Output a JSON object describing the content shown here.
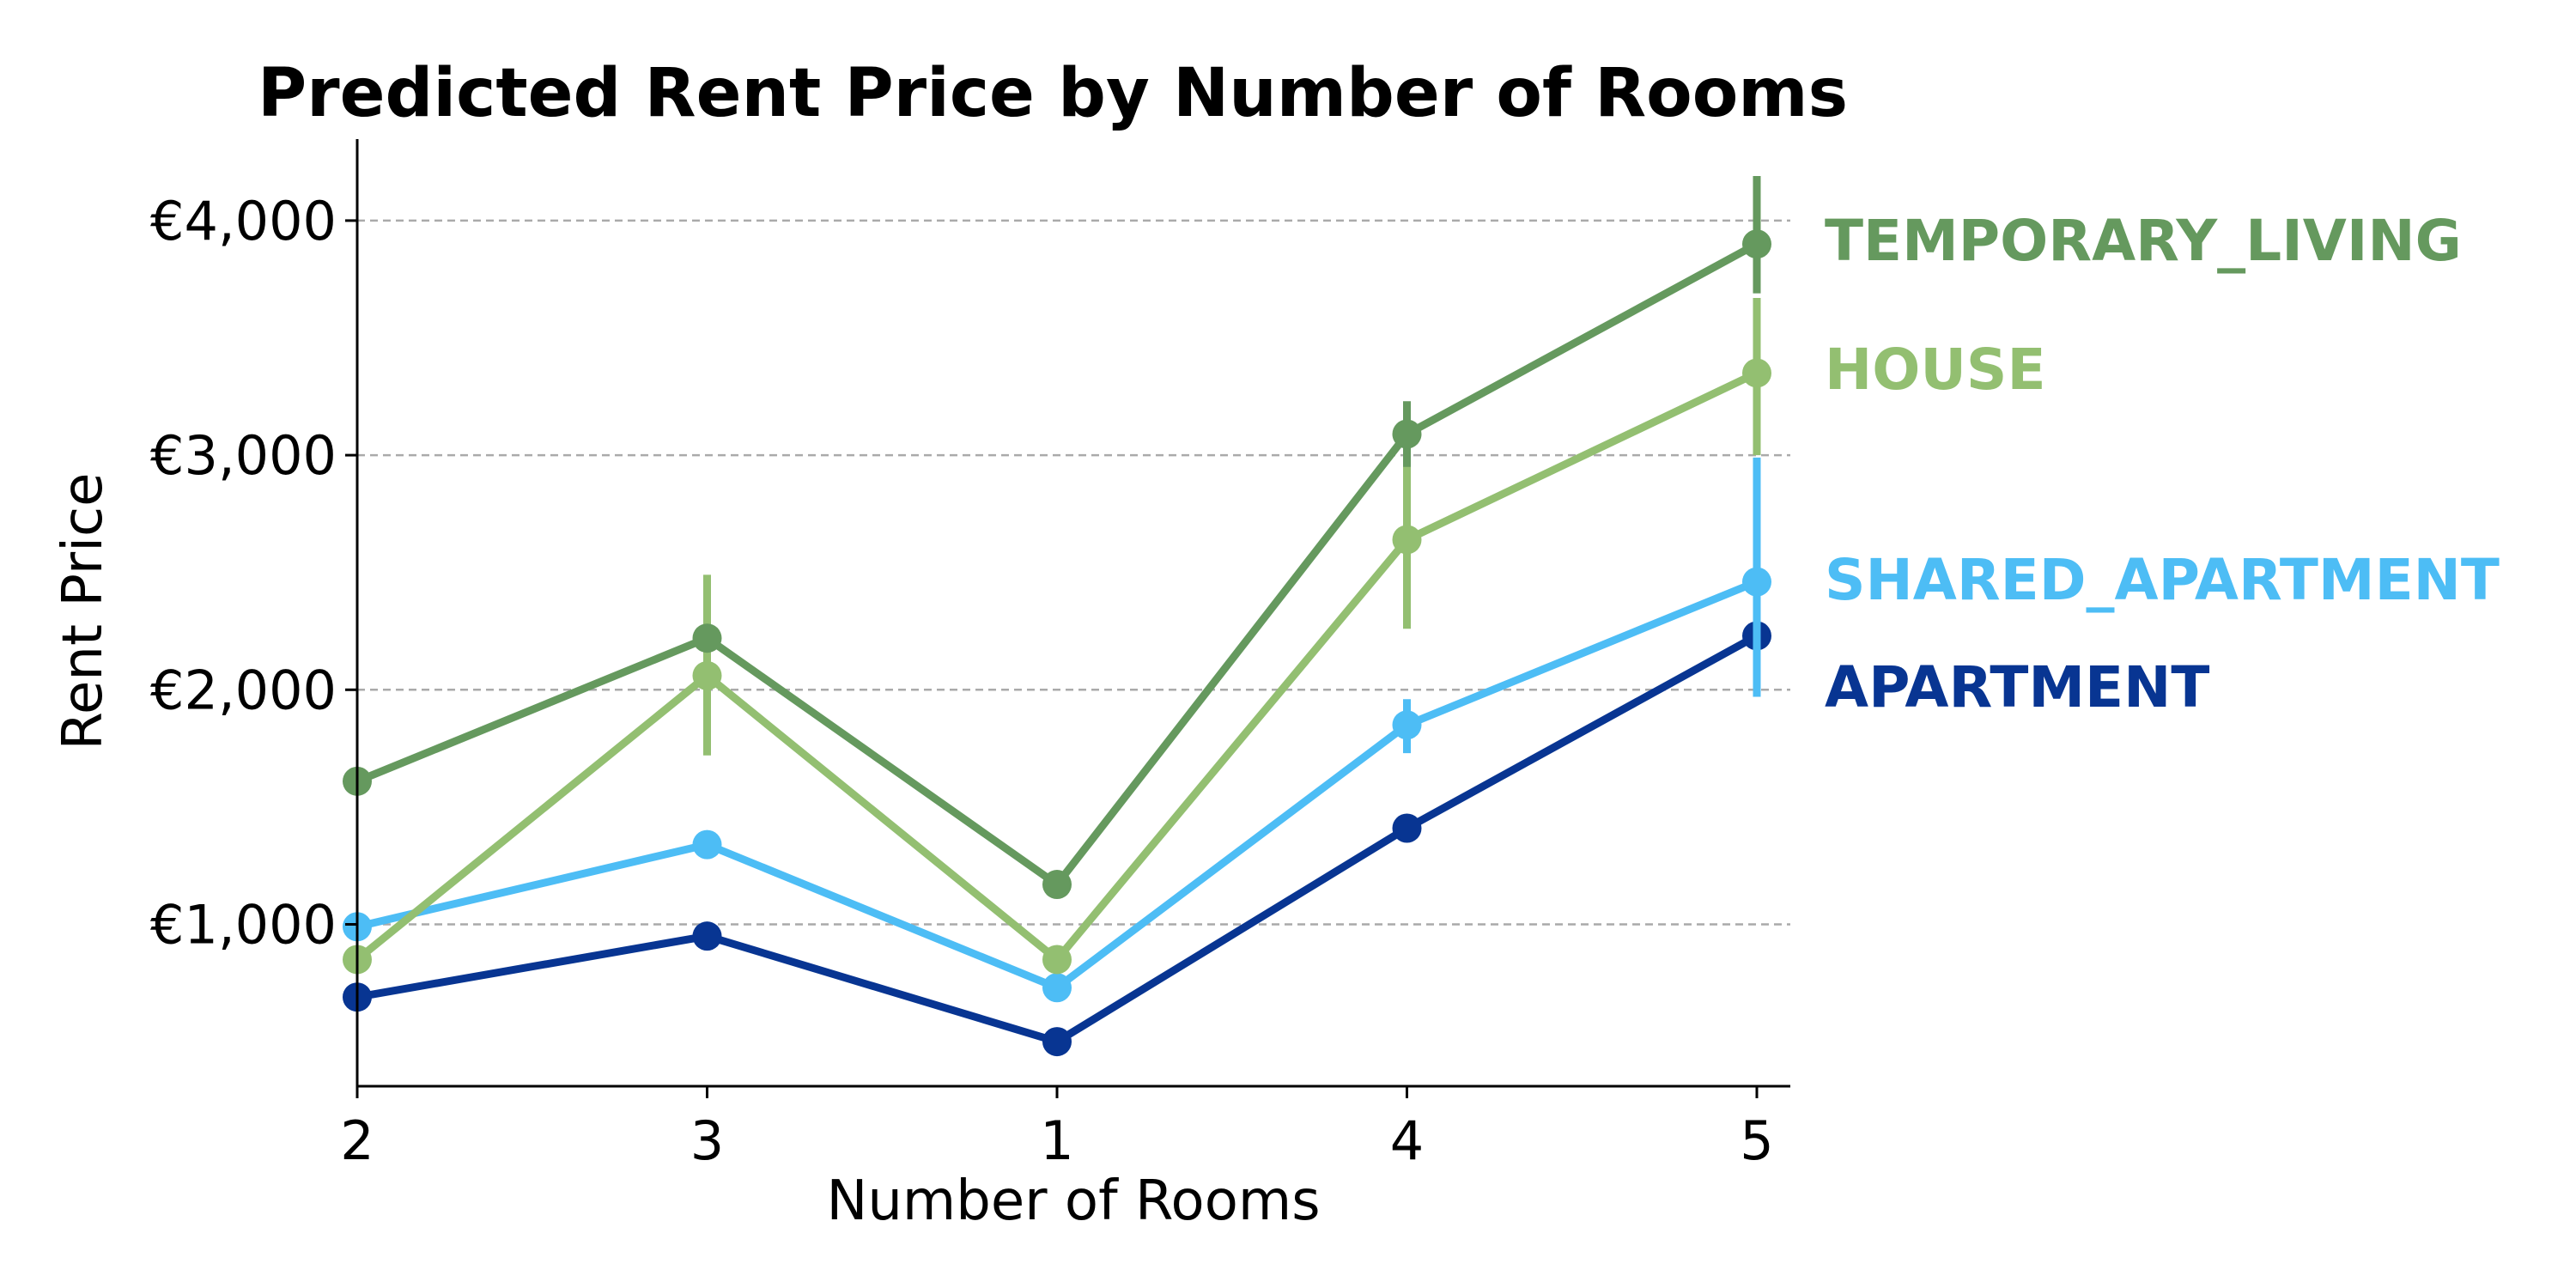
{
  "chart_data": {
    "type": "line",
    "title": "Predicted Rent Price by Number of Rooms",
    "xlabel": "Number of Rooms",
    "ylabel": "Rent Price",
    "categories": [
      "2",
      "3",
      "1",
      "4",
      "5"
    ],
    "y_ticks": [
      1000,
      2000,
      3000,
      4000
    ],
    "y_tick_labels": [
      "€1,000",
      "€2,000",
      "€3,000",
      "€4,000"
    ],
    "ylim": [
      300,
      4350
    ],
    "grid": "horizontal dashed",
    "legend": "inline labels at right",
    "series": [
      {
        "name": "TEMPORARY_LIVING",
        "color": "#65995e",
        "values": [
          1610,
          2220,
          1170,
          3090,
          3900
        ],
        "error_low": [
          null,
          null,
          null,
          2950,
          3690
        ],
        "error_high": [
          null,
          null,
          null,
          3230,
          4190
        ]
      },
      {
        "name": "HOUSE",
        "color": "#93bf71",
        "values": [
          850,
          2060,
          850,
          2640,
          3350
        ],
        "error_low": [
          null,
          1720,
          null,
          2260,
          3000
        ],
        "error_high": [
          null,
          2490,
          null,
          2970,
          3670
        ]
      },
      {
        "name": "SHARED_APARTMENT",
        "color": "#4dbdf5",
        "values": [
          990,
          1340,
          730,
          1850,
          2460
        ],
        "error_low": [
          null,
          null,
          null,
          1730,
          1970
        ],
        "error_high": [
          null,
          null,
          null,
          1960,
          2990
        ]
      },
      {
        "name": "APARTMENT",
        "color": "#083592",
        "values": [
          690,
          950,
          500,
          1410,
          2230
        ],
        "error_low": [
          null,
          null,
          null,
          null,
          null
        ],
        "error_high": [
          null,
          null,
          null,
          null,
          null
        ]
      }
    ]
  }
}
